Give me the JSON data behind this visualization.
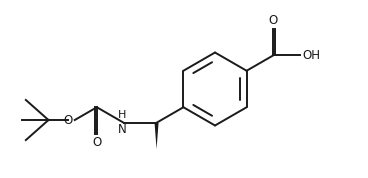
{
  "background": "#ffffff",
  "line_color": "#1a1a1a",
  "line_width": 1.4,
  "font_size": 8.5,
  "fig_width": 3.68,
  "fig_height": 1.78,
  "xlim": [
    0,
    10
  ],
  "ylim": [
    0,
    4.84
  ]
}
